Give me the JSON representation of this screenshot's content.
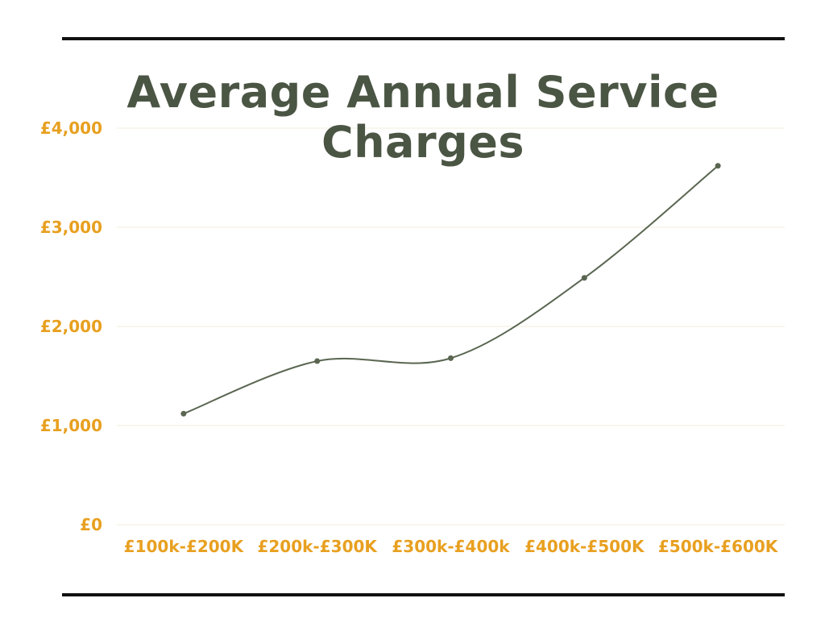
{
  "chart_data": {
    "type": "line",
    "title": "Average Annual Service Charges",
    "xlabel": "",
    "ylabel": "",
    "categories": [
      "£100k-£200K",
      "£200k-£300K",
      "£300k-£400k",
      "£400k-£500K",
      "£500k-£600K"
    ],
    "series": [
      {
        "values": [
          1120,
          1650,
          1680,
          2490,
          3620
        ]
      }
    ],
    "ylim": [
      0,
      4000
    ],
    "yticks": [
      {
        "value": 0,
        "label": "£0"
      },
      {
        "value": 1000,
        "label": "£1,000"
      },
      {
        "value": 2000,
        "label": "£2,000"
      },
      {
        "value": 3000,
        "label": "£3,000"
      },
      {
        "value": 4000,
        "label": "£4,000"
      }
    ],
    "grid": true,
    "smooth": true,
    "legend": "none"
  },
  "colors": {
    "line": "#5a6651",
    "tick_labels": "#e8a020",
    "title": "#4b5544",
    "grid": "#f3eedc",
    "rules": "#111111"
  }
}
